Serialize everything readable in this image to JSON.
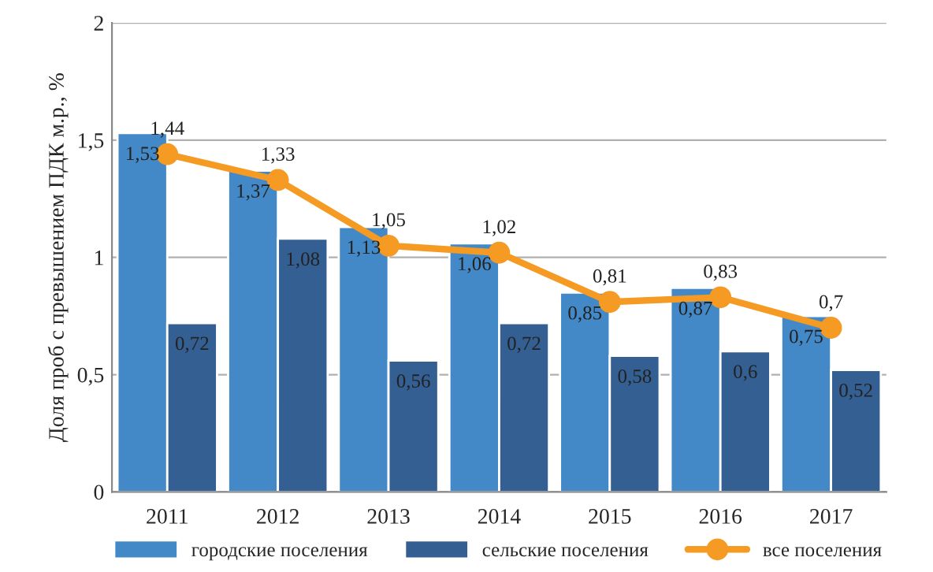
{
  "chart_data": {
    "type": "bar",
    "ylabel": "Доля проб с превышением ПДК м.р., %",
    "categories": [
      "2011",
      "2012",
      "2013",
      "2014",
      "2015",
      "2016",
      "2017"
    ],
    "series": [
      {
        "name": "городские поселения",
        "color": "#4389c8",
        "values": [
          1.53,
          1.37,
          1.13,
          1.06,
          0.85,
          0.87,
          0.75
        ],
        "value_labels": [
          "1,53",
          "1,37",
          "1,13",
          "1,06",
          "0,85",
          "0,87",
          "0,75"
        ]
      },
      {
        "name": "сельские поселения",
        "color": "#345f92",
        "values": [
          0.72,
          1.08,
          0.56,
          0.72,
          0.58,
          0.6,
          0.52
        ],
        "value_labels": [
          "0,72",
          "1,08",
          "0,56",
          "0,72",
          "0,58",
          "0,6",
          "0,52"
        ]
      },
      {
        "name": "все поселения",
        "type": "line",
        "color": "#f59a23",
        "marker": "circle",
        "values": [
          1.44,
          1.33,
          1.05,
          1.02,
          0.81,
          0.83,
          0.7
        ],
        "value_labels": [
          "1,44",
          "1,33",
          "1,05",
          "1,02",
          "0,81",
          "0,83",
          "0,7"
        ]
      }
    ],
    "ylim": [
      0,
      2
    ],
    "yticks": [
      0,
      {
        "value": 0.5,
        "label": "0,5"
      },
      1,
      {
        "value": 1.5,
        "label": "1,5"
      },
      2
    ],
    "grid": "y",
    "legend": "bottom"
  }
}
